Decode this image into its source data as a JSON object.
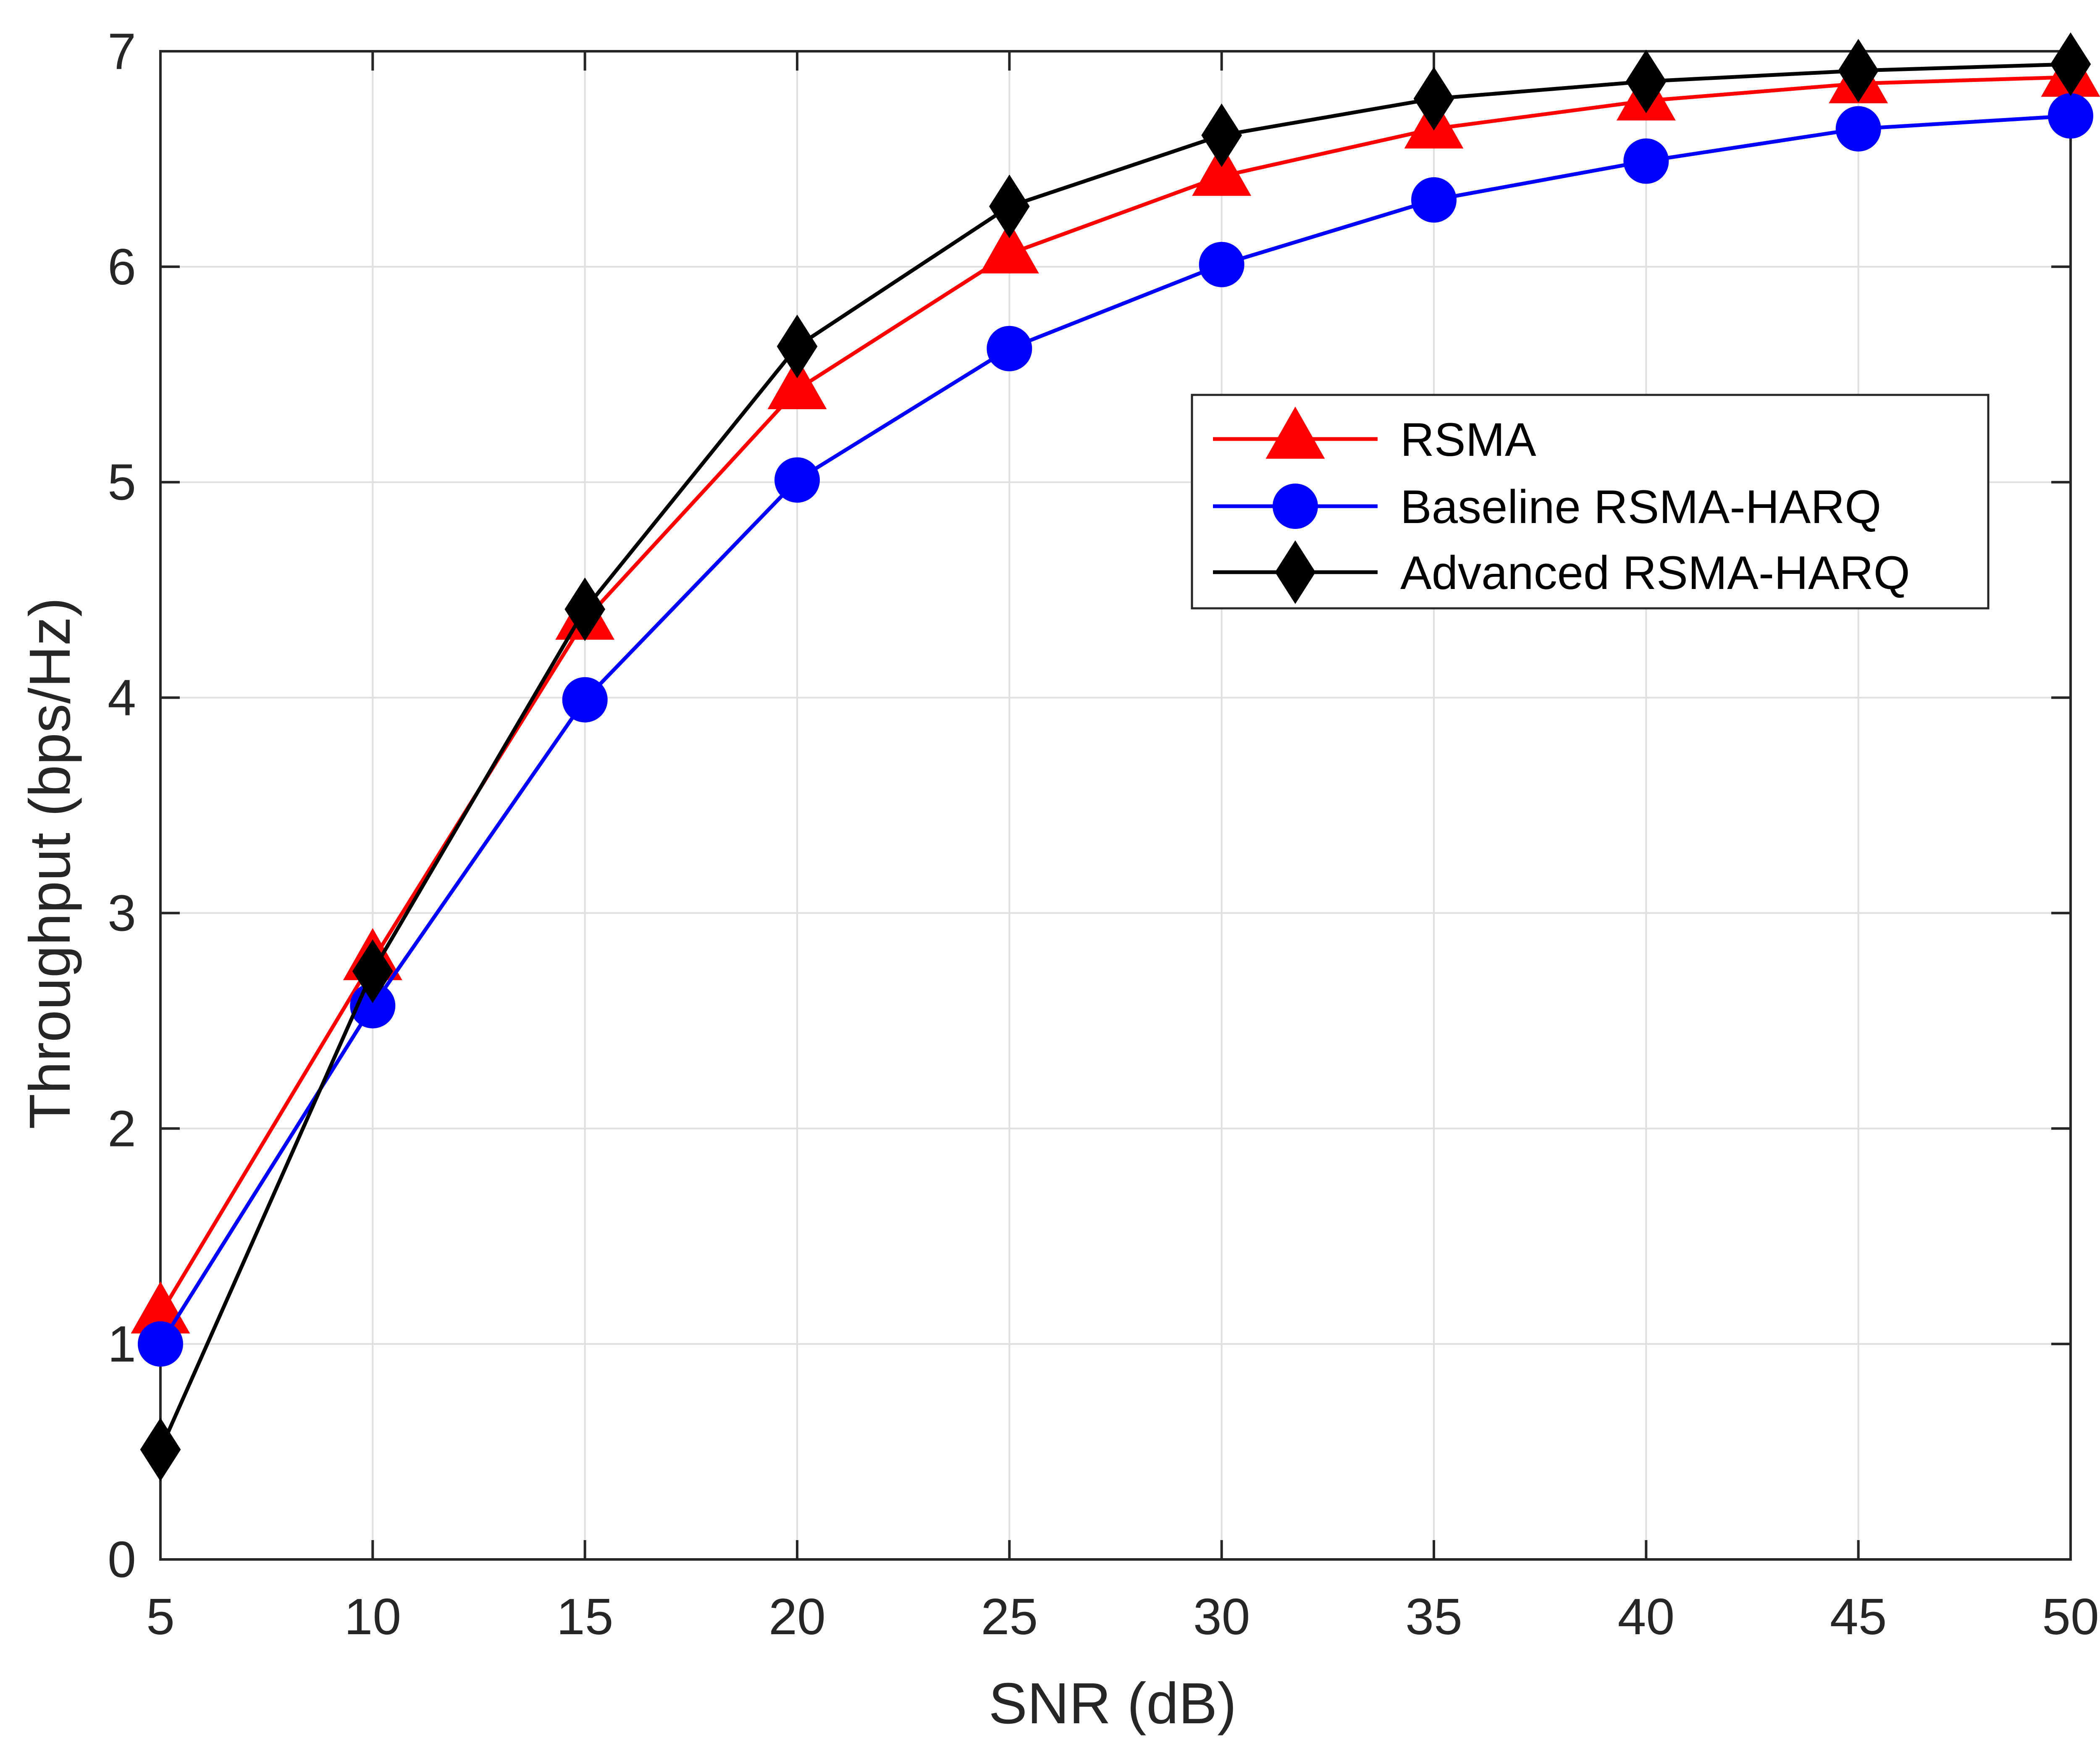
{
  "chart_data": {
    "type": "line",
    "title": "",
    "xlabel": "SNR (dB)",
    "ylabel": "Throughput (bps/Hz)",
    "xlim": [
      5,
      50
    ],
    "ylim": [
      0,
      7
    ],
    "x_ticks": [
      5,
      10,
      15,
      20,
      25,
      30,
      35,
      40,
      45,
      50
    ],
    "y_ticks": [
      0,
      1,
      2,
      3,
      4,
      5,
      6,
      7
    ],
    "grid": true,
    "legend_position": "center-right",
    "x": [
      5,
      10,
      15,
      20,
      25,
      30,
      35,
      40,
      45,
      50
    ],
    "series": [
      {
        "name": "RSMA",
        "color": "#ff0000",
        "marker": "triangle",
        "values": [
          1.14,
          2.78,
          4.36,
          5.43,
          6.06,
          6.42,
          6.64,
          6.77,
          6.85,
          6.88
        ]
      },
      {
        "name": "Baseline RSMA-HARQ",
        "color": "#0000ff",
        "marker": "circle",
        "values": [
          1.0,
          2.57,
          3.99,
          5.01,
          5.62,
          6.01,
          6.31,
          6.49,
          6.64,
          6.7
        ]
      },
      {
        "name": "Advanced RSMA-HARQ",
        "color": "#000000",
        "marker": "diamond",
        "values": [
          0.51,
          2.73,
          4.41,
          5.63,
          6.28,
          6.61,
          6.78,
          6.86,
          6.91,
          6.94
        ]
      }
    ]
  }
}
